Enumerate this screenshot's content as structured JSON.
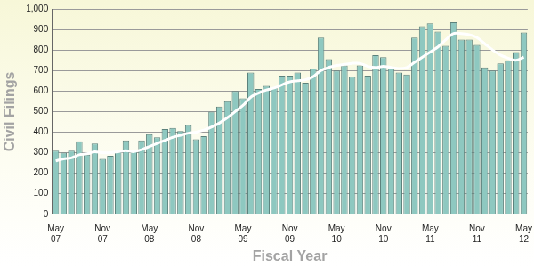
{
  "chart_data": {
    "type": "bar",
    "x_label": "Fiscal Year",
    "y_label": "Civil Filings",
    "categories": [
      "May 07",
      null,
      null,
      null,
      null,
      null,
      "Nov 07",
      null,
      null,
      null,
      null,
      null,
      "May 08",
      null,
      null,
      null,
      null,
      null,
      "Nov 08",
      null,
      null,
      null,
      null,
      null,
      "May 09",
      null,
      null,
      null,
      null,
      null,
      "Nov 09",
      null,
      null,
      null,
      null,
      null,
      "May 10",
      null,
      null,
      null,
      null,
      null,
      "Nov 10",
      null,
      null,
      null,
      null,
      null,
      "May 11",
      null,
      null,
      null,
      null,
      null,
      "Nov 11",
      null,
      null,
      null,
      null,
      null,
      "May 12"
    ],
    "series": [
      {
        "type": "bar",
        "color": "#8ec8c0",
        "values": [
          310,
          300,
          310,
          355,
          290,
          345,
          270,
          285,
          305,
          360,
          310,
          360,
          390,
          375,
          415,
          420,
          405,
          435,
          365,
          380,
          500,
          525,
          550,
          600,
          565,
          690,
          610,
          625,
          615,
          675,
          675,
          690,
          640,
          710,
          860,
          755,
          700,
          725,
          670,
          725,
          675,
          775,
          765,
          710,
          690,
          680,
          860,
          915,
          930,
          890,
          820,
          935,
          850,
          850,
          825,
          715,
          700,
          735,
          750,
          790,
          885
        ]
      },
      {
        "type": "line",
        "color": "#ffffff",
        "values": [
          260,
          270,
          275,
          290,
          295,
          305,
          300,
          300,
          305,
          310,
          305,
          315,
          330,
          345,
          360,
          375,
          385,
          395,
          400,
          410,
          425,
          445,
          470,
          500,
          530,
          570,
          590,
          605,
          615,
          630,
          645,
          650,
          655,
          670,
          700,
          715,
          725,
          730,
          735,
          735,
          720,
          715,
          720,
          715,
          710,
          715,
          740,
          765,
          790,
          815,
          850,
          880,
          880,
          875,
          860,
          830,
          800,
          775,
          760,
          750,
          765
        ]
      }
    ],
    "ylim": [
      0,
      1000
    ],
    "yticks": [
      0,
      100,
      200,
      300,
      400,
      500,
      600,
      700,
      800,
      900,
      {
        "value": 1000,
        "label": "1,000"
      }
    ],
    "grid": true
  }
}
